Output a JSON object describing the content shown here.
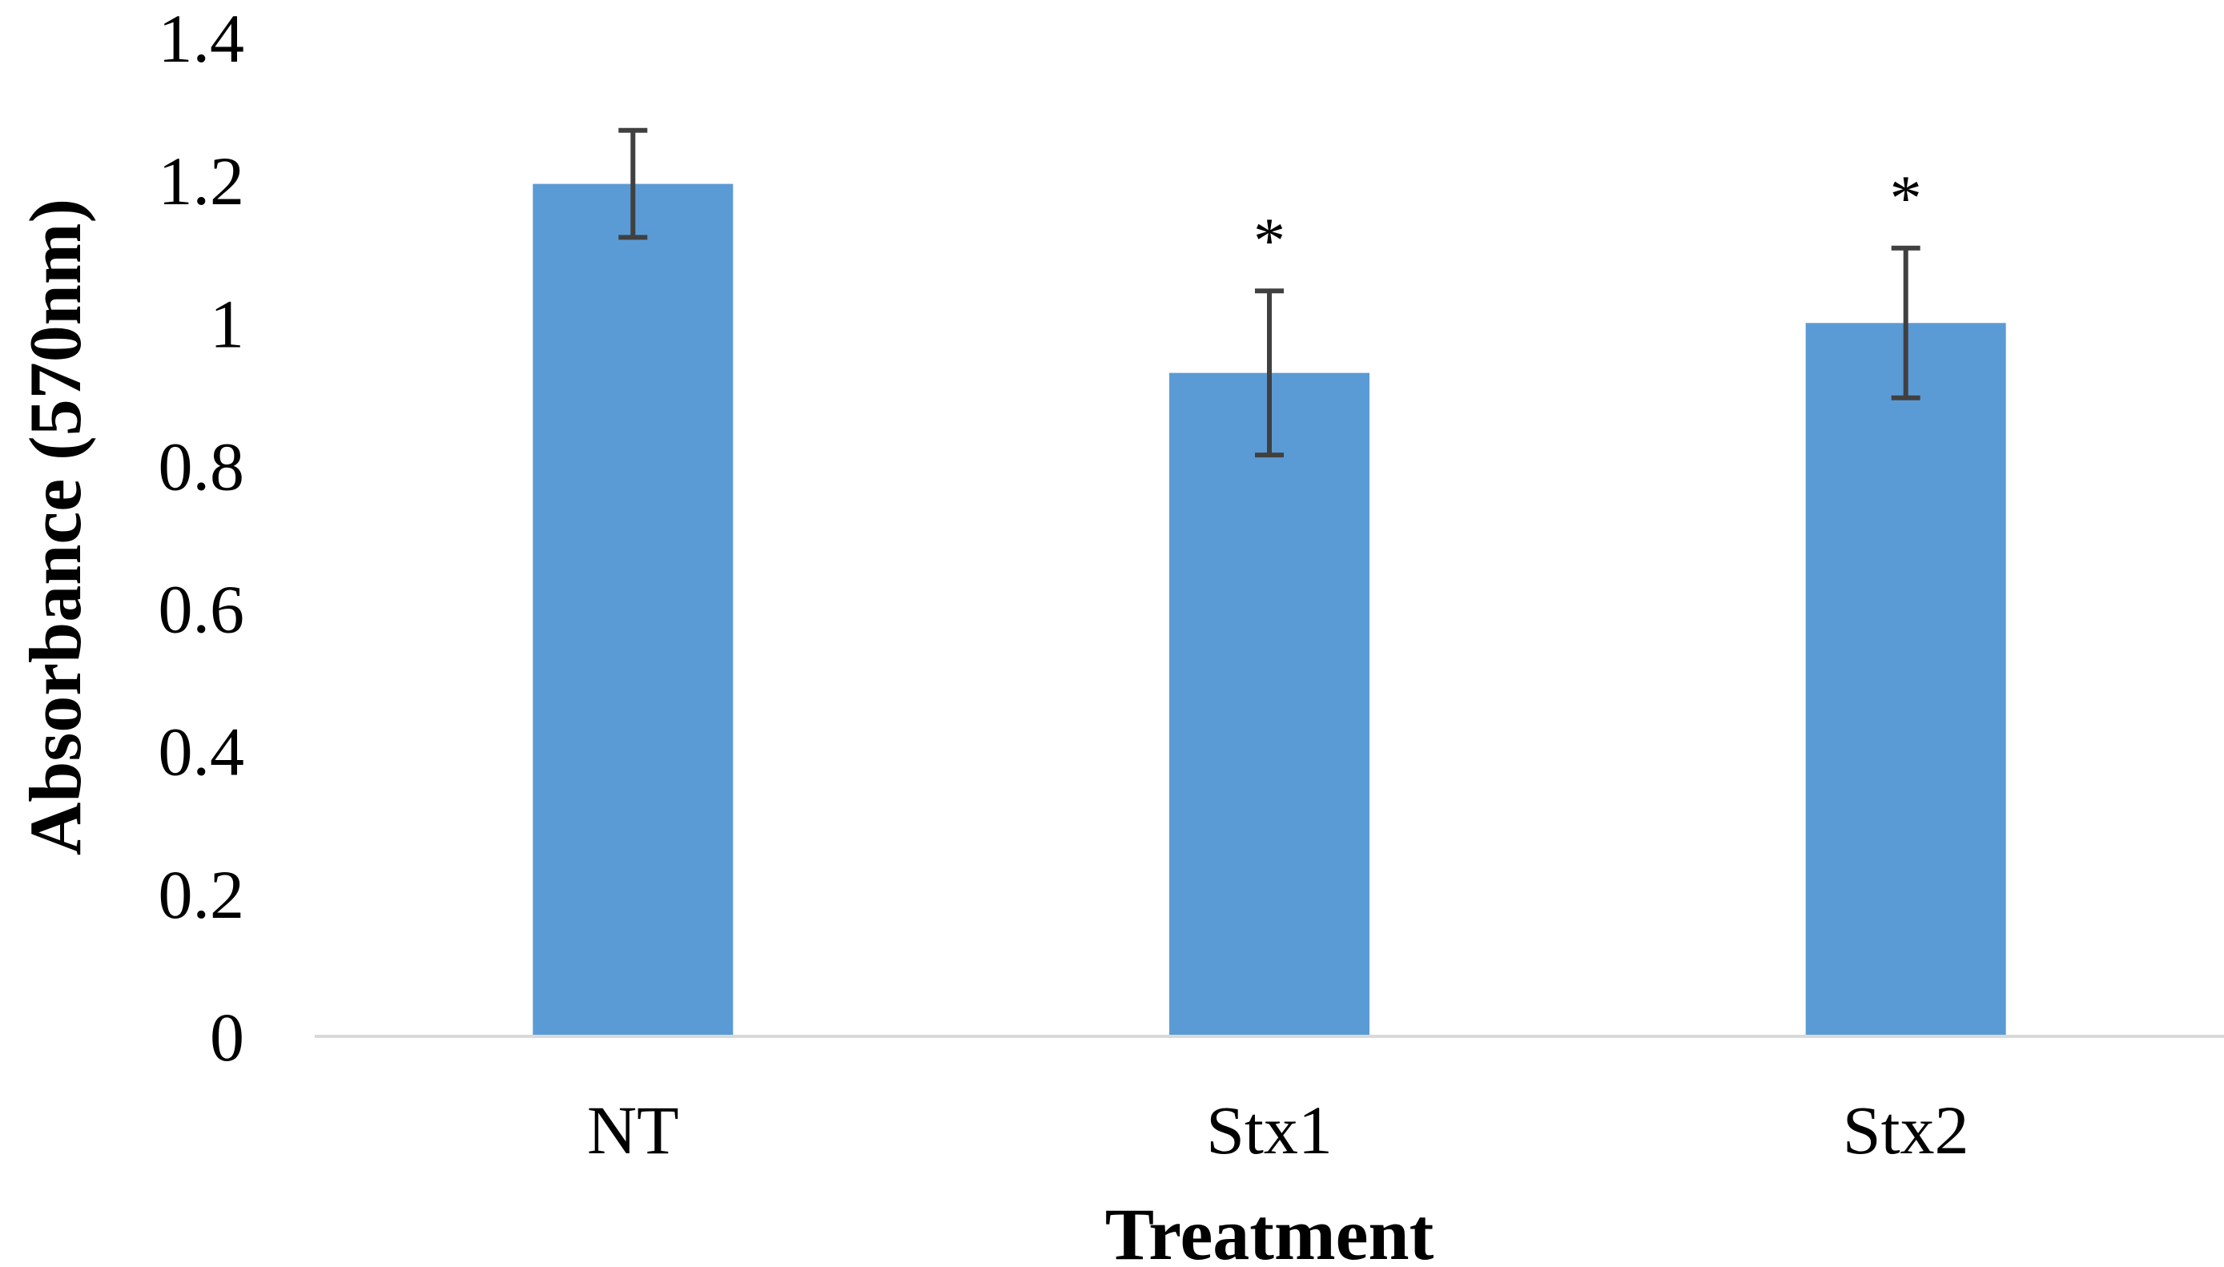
{
  "chart_data": {
    "type": "bar",
    "title": "",
    "xlabel": "Treatment",
    "ylabel": "Absorbance (570nm)",
    "categories": [
      "NT",
      "Stx1",
      "Stx2"
    ],
    "values": [
      1.195,
      0.93,
      1.0
    ],
    "error_bars": [
      0.075,
      0.115,
      0.105
    ],
    "significance": [
      "",
      "*",
      "*"
    ],
    "ylim": [
      0,
      1.4
    ],
    "yticks": [
      "0",
      "0.2",
      "0.4",
      "0.6",
      "0.8",
      "1",
      "1.2",
      "1.4"
    ],
    "grid": false,
    "legend": "none",
    "colors": {
      "bar": "#5b9bd5",
      "error_bar": "#404040",
      "axis": "#d9d9d9"
    }
  }
}
